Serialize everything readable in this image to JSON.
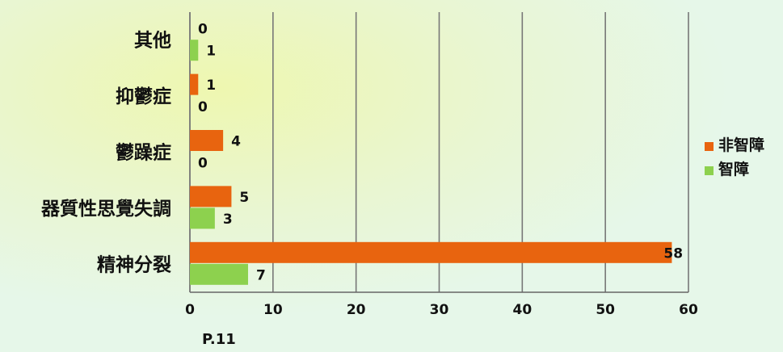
{
  "chart_data": {
    "type": "bar",
    "orientation": "horizontal",
    "categories": [
      "其他",
      "抑鬱症",
      "鬱躁症",
      "器質性思覺失調",
      "精神分裂"
    ],
    "series": [
      {
        "name": "非智障",
        "values": [
          0,
          1,
          4,
          5,
          58
        ],
        "color": "#e8640f"
      },
      {
        "name": "智障",
        "values": [
          1,
          0,
          0,
          3,
          7
        ],
        "color": "#8dd14e"
      }
    ],
    "xlim": [
      0,
      60
    ],
    "xticks": [
      0,
      10,
      20,
      30,
      40,
      50,
      60
    ],
    "grid": "vertical",
    "legend": "right",
    "title": "",
    "xlabel": "",
    "ylabel": ""
  },
  "page_note": "P.11"
}
